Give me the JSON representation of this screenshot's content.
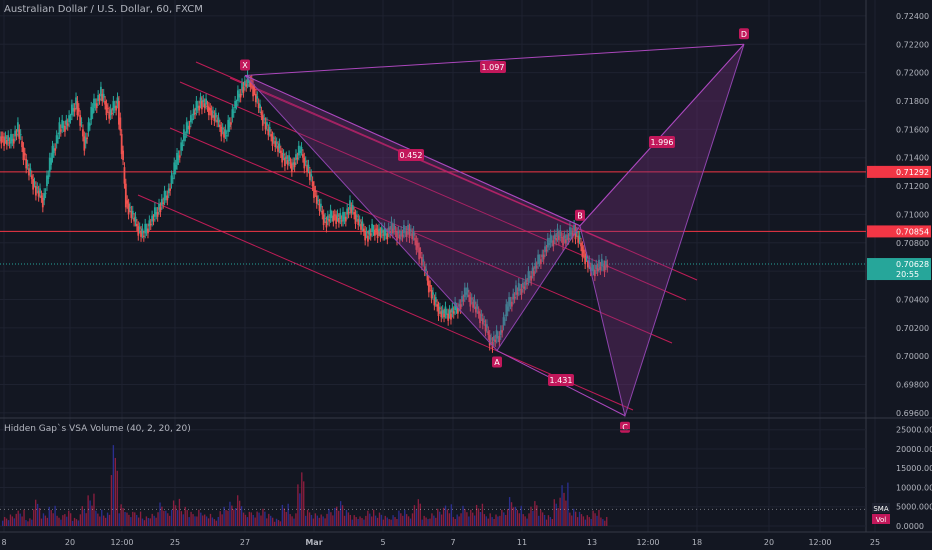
{
  "header": {
    "symbol_title": "Australian Dollar / U.S. Dollar, 60, FXCM"
  },
  "volume_panel": {
    "title": "Hidden Gap`s VSA Volume (40, 2, 20, 20)",
    "sma_label": "SMA",
    "vol_label": "Vol"
  },
  "colors": {
    "background": "#131722",
    "up_candle": "#26a69a",
    "down_candle": "#ef5350",
    "pattern_fill": "#7b2e7e",
    "pattern_line": "#c2185b",
    "hline": "#f23645",
    "vol_bear": "#8b1e3f",
    "vol_bull": "#2a2f8f"
  },
  "chart_data": [
    {
      "type": "line",
      "title": "Australian Dollar / U.S. Dollar, 60, FXCM",
      "ylim": [
        0.6955,
        0.7247
      ],
      "y_ticks": [
        "0.72400",
        "0.72200",
        "0.72000",
        "0.71800",
        "0.71600",
        "0.71400",
        "0.71200",
        "0.71000",
        "0.70800",
        "0.70600",
        "0.70400",
        "0.70200",
        "0.70000",
        "0.69800",
        "0.69600"
      ],
      "x_tick_labels": [
        "8",
        "20",
        "12:00",
        "25",
        "27",
        "Mar",
        "5",
        "7",
        "11",
        "13",
        "12:00",
        "18",
        "20",
        "12:00",
        "25"
      ],
      "close_path": [
        0.7155,
        0.715,
        0.716,
        0.7135,
        0.712,
        0.711,
        0.714,
        0.716,
        0.7165,
        0.718,
        0.715,
        0.7175,
        0.7185,
        0.717,
        0.718,
        0.711,
        0.7095,
        0.7085,
        0.7095,
        0.7105,
        0.7115,
        0.7135,
        0.7155,
        0.717,
        0.718,
        0.7175,
        0.7165,
        0.7155,
        0.7175,
        0.719,
        0.7195,
        0.7175,
        0.716,
        0.715,
        0.714,
        0.7135,
        0.7145,
        0.713,
        0.711,
        0.7095,
        0.71,
        0.7095,
        0.7105,
        0.7095,
        0.7085,
        0.709,
        0.7085,
        0.709,
        0.7085,
        0.709,
        0.708,
        0.706,
        0.704,
        0.703,
        0.703,
        0.7035,
        0.7045,
        0.7035,
        0.7025,
        0.701,
        0.7015,
        0.7035,
        0.7045,
        0.705,
        0.706,
        0.707,
        0.708,
        0.7085,
        0.7082,
        0.709,
        0.7075,
        0.706,
        0.7063,
        0.7065
      ],
      "hlines": [
        {
          "price": 0.713,
          "label": "0.71292"
        },
        {
          "price": 0.7088,
          "label": "0.70854"
        }
      ],
      "current_price": {
        "price": 0.7065,
        "label": "0.70628",
        "countdown": "20:55"
      },
      "harmonic_pattern": {
        "points": [
          {
            "name": "X",
            "x_label": "27",
            "price": 0.7198
          },
          {
            "name": "A",
            "x_label": "9",
            "price": 0.7004
          },
          {
            "name": "B",
            "x_label": "12",
            "price": 0.7092
          },
          {
            "name": "C",
            "x_label": "13",
            "price": 0.6958
          },
          {
            "name": "D",
            "x_label": "19",
            "price": 0.722
          }
        ],
        "ratios": [
          "1.097",
          "0.452",
          "1.996",
          "1.431"
        ]
      },
      "channel": "descending, 5 parallel lines"
    },
    {
      "type": "bar",
      "title": "Hidden Gap`s VSA Volume (40, 2, 20, 20)",
      "ylim": [
        0,
        27000
      ],
      "y_ticks": [
        "25000.0000",
        "20000.0000",
        "15000.0000",
        "10000.0000",
        "5000.0000",
        "0.0000"
      ],
      "volume_levels": [
        2500,
        3000,
        4500,
        2000,
        6500,
        3500,
        5000,
        3000,
        4000,
        2000,
        5500,
        8000,
        4500,
        3500,
        20000,
        6000,
        3500,
        4000,
        2500,
        3000,
        6500,
        4000,
        7500,
        5000,
        3500,
        4500,
        3000,
        2500,
        5000,
        6000,
        8500,
        3500,
        4000,
        4500,
        3000,
        2000,
        5500,
        3500,
        14000,
        4000,
        3500,
        3000,
        5000,
        6500,
        4000,
        3000,
        2500,
        4500,
        3500,
        2500,
        3000,
        4000,
        3500,
        7000,
        2500,
        3500,
        4500,
        6000,
        3000,
        5000,
        4500,
        5500,
        3500,
        3000,
        4000,
        8000,
        5000,
        3500,
        6500,
        4000,
        3000,
        7000,
        12000,
        4500,
        3500,
        3000,
        4000,
        2500
      ]
    }
  ]
}
